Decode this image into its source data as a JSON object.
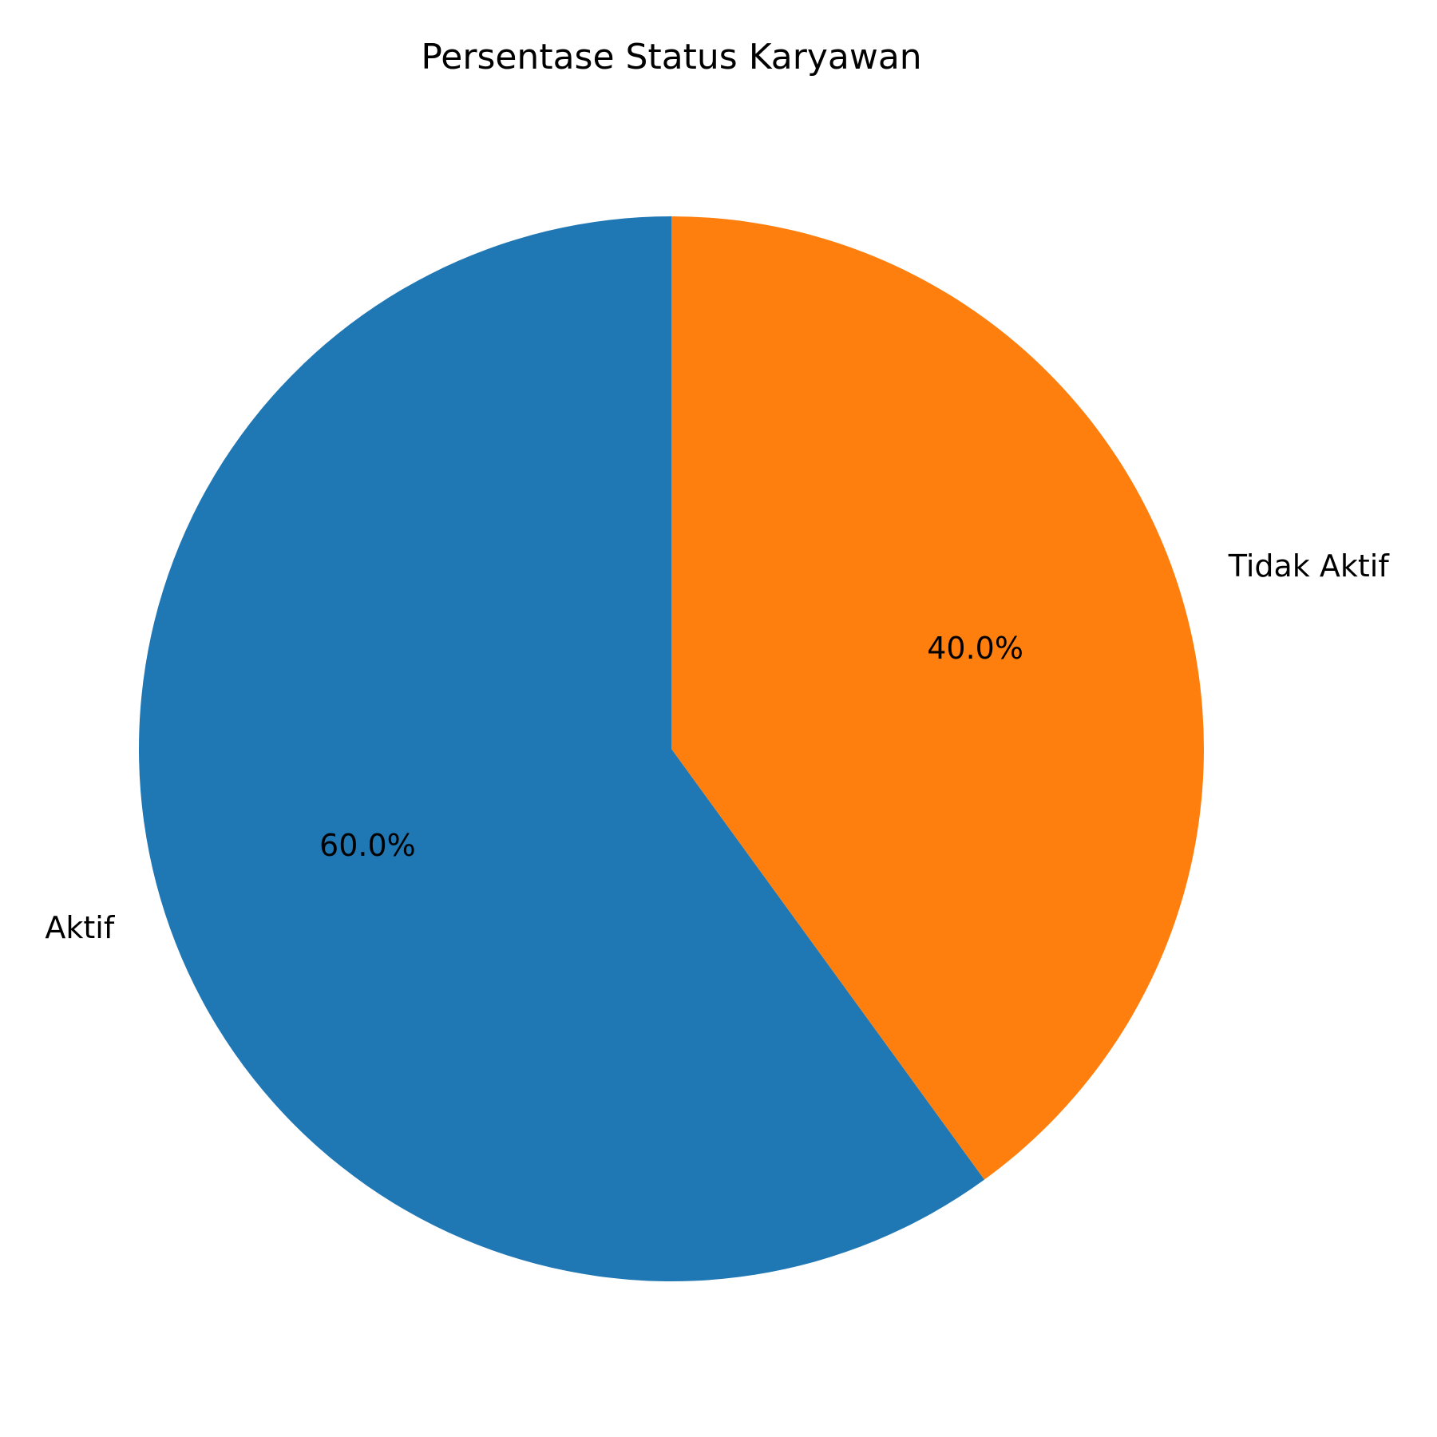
{
  "chart_data": {
    "type": "pie",
    "title": "Persentase Status Karyawan",
    "categories": [
      "Aktif",
      "Tidak Aktif"
    ],
    "values": [
      60.0,
      40.0
    ],
    "value_labels": [
      "60.0%",
      "40.0%"
    ],
    "colors": [
      "#1f77b4",
      "#ff7f0e"
    ],
    "start_angle_deg": 90,
    "direction": "counterclockwise"
  }
}
